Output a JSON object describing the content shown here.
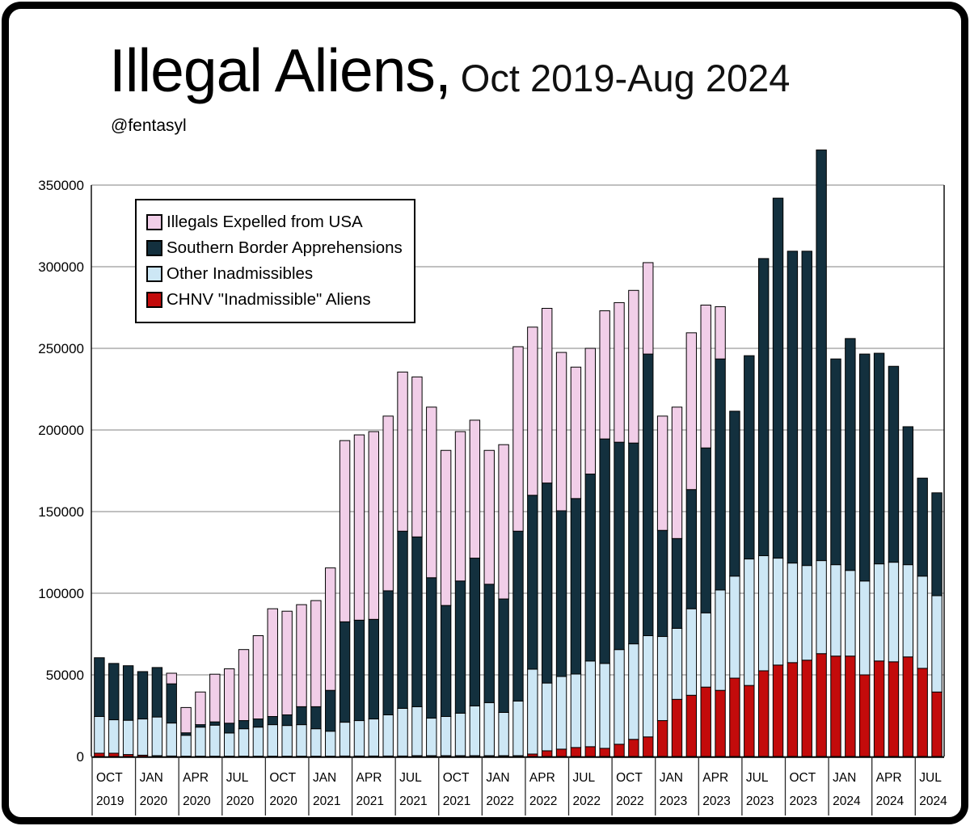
{
  "title": {
    "main": "Illegal Aliens,",
    "range": "Oct 2019-Aug 2024"
  },
  "subtitle": "@fentasyl",
  "legend": {
    "items": [
      {
        "label": "Illegals Expelled from USA",
        "color": "#f1cee8"
      },
      {
        "label": "Southern Border Apprehensions",
        "color": "#13303e"
      },
      {
        "label": "Other Inadmissibles",
        "color": "#cde7f5"
      },
      {
        "label": "CHNV \"Inadmissible\" Aliens",
        "color": "#c30b0b"
      }
    ]
  },
  "chart_data": {
    "type": "bar",
    "stacked": true,
    "title": "Illegal Aliens, Oct 2019-Aug 2024",
    "xlabel": "",
    "ylabel": "",
    "ylim": [
      0,
      350000
    ],
    "grid": true,
    "legend_position": "upper-left-inside",
    "y_ticks": [
      0,
      50000,
      100000,
      150000,
      200000,
      250000,
      300000,
      350000
    ],
    "x_ticks": [
      {
        "month": "OCT",
        "year": "2019"
      },
      {
        "month": "JAN",
        "year": "2020"
      },
      {
        "month": "APR",
        "year": "2020"
      },
      {
        "month": "JUL",
        "year": "2020"
      },
      {
        "month": "OCT",
        "year": "2020"
      },
      {
        "month": "JAN",
        "year": "2021"
      },
      {
        "month": "APR",
        "year": "2021"
      },
      {
        "month": "JUL",
        "year": "2021"
      },
      {
        "month": "OCT",
        "year": "2021"
      },
      {
        "month": "JAN",
        "year": "2022"
      },
      {
        "month": "APR",
        "year": "2022"
      },
      {
        "month": "JUL",
        "year": "2022"
      },
      {
        "month": "OCT",
        "year": "2022"
      },
      {
        "month": "JAN",
        "year": "2023"
      },
      {
        "month": "APR",
        "year": "2023"
      },
      {
        "month": "JUL",
        "year": "2023"
      },
      {
        "month": "OCT",
        "year": "2023"
      },
      {
        "month": "JAN",
        "year": "2024"
      },
      {
        "month": "APR",
        "year": "2024"
      },
      {
        "month": "JUL",
        "year": "2024"
      }
    ],
    "categories": [
      "Oct 2019",
      "Nov 2019",
      "Dec 2019",
      "Jan 2020",
      "Feb 2020",
      "Mar 2020",
      "Apr 2020",
      "May 2020",
      "Jun 2020",
      "Jul 2020",
      "Aug 2020",
      "Sep 2020",
      "Oct 2020",
      "Nov 2020",
      "Dec 2020",
      "Jan 2021",
      "Feb 2021",
      "Mar 2021",
      "Apr 2021",
      "May 2021",
      "Jun 2021",
      "Jul 2021",
      "Aug 2021",
      "Sep 2021",
      "Oct 2021",
      "Nov 2021",
      "Dec 2021",
      "Jan 2022",
      "Feb 2022",
      "Mar 2022",
      "Apr 2022",
      "May 2022",
      "Jun 2022",
      "Jul 2022",
      "Aug 2022",
      "Sep 2022",
      "Oct 2022",
      "Nov 2022",
      "Dec 2022",
      "Jan 2023",
      "Feb 2023",
      "Mar 2023",
      "Apr 2023",
      "May 2023",
      "Jun 2023",
      "Jul 2023",
      "Aug 2023",
      "Sep 2023",
      "Oct 2023",
      "Nov 2023",
      "Dec 2023",
      "Jan 2024",
      "Feb 2024",
      "Mar 2024",
      "Apr 2024",
      "May 2024",
      "Jun 2024",
      "Jul 2024",
      "Aug 2024"
    ],
    "series": [
      {
        "name": "CHNV \"Inadmissible\" Aliens",
        "color": "#c30b0b",
        "values": [
          2000,
          2000,
          1200,
          800,
          500,
          300,
          200,
          200,
          200,
          200,
          200,
          200,
          200,
          200,
          200,
          200,
          200,
          300,
          300,
          300,
          300,
          300,
          500,
          500,
          500,
          500,
          500,
          500,
          500,
          500,
          1500,
          3500,
          4500,
          5500,
          6000,
          5000,
          7500,
          10500,
          12000,
          22000,
          35000,
          37500,
          42500,
          40500,
          48000,
          43500,
          52500,
          56000,
          57500,
          59000,
          63000,
          61500,
          61500,
          50000,
          58500,
          58000,
          61000,
          54000,
          39500
        ]
      },
      {
        "name": "Other Inadmissibles",
        "color": "#cde7f5",
        "values": [
          22500,
          20500,
          21000,
          22200,
          23700,
          20200,
          12800,
          17800,
          19000,
          14200,
          16800,
          17800,
          19300,
          18800,
          19300,
          16800,
          15300,
          20700,
          21700,
          22700,
          25200,
          29200,
          30000,
          23000,
          24000,
          26000,
          30500,
          32500,
          26500,
          33500,
          52000,
          41500,
          44500,
          45000,
          52500,
          52000,
          58000,
          58500,
          62000,
          51500,
          43500,
          53000,
          45500,
          61500,
          62500,
          77500,
          70500,
          65500,
          61000,
          58000,
          57000,
          56000,
          52500,
          57500,
          59500,
          61000,
          56500,
          56500,
          59000
        ]
      },
      {
        "name": "Southern Border Apprehensions",
        "color": "#13303e",
        "values": [
          36000,
          34500,
          33400,
          29000,
          30300,
          24000,
          1500,
          1500,
          2000,
          6000,
          5000,
          5000,
          5000,
          6500,
          11000,
          13500,
          25000,
          61500,
          61500,
          61000,
          76000,
          108500,
          104000,
          86000,
          68000,
          81000,
          90500,
          72500,
          69500,
          104000,
          106500,
          122500,
          101500,
          107500,
          114500,
          137500,
          127000,
          123000,
          172500,
          65000,
          55000,
          73000,
          101000,
          141500,
          101000,
          124500,
          182000,
          220500,
          191000,
          192500,
          251500,
          126000,
          142000,
          139000,
          129000,
          120000,
          84500,
          60000,
          63000
        ]
      },
      {
        "name": "Illegals Expelled from USA",
        "color": "#f1cee8",
        "values": [
          0,
          0,
          0,
          0,
          0,
          6500,
          15500,
          20000,
          29200,
          33300,
          43500,
          51000,
          66000,
          63500,
          62500,
          65000,
          75000,
          111000,
          113500,
          115000,
          107000,
          97500,
          98000,
          104500,
          95000,
          91500,
          84500,
          82000,
          94500,
          113000,
          103000,
          107000,
          97000,
          80500,
          77000,
          78500,
          85500,
          93500,
          56000,
          70000,
          80500,
          96000,
          87500,
          32000,
          0,
          0,
          0,
          0,
          0,
          0,
          0,
          0,
          0,
          0,
          0,
          0,
          0,
          0,
          0
        ]
      }
    ]
  }
}
